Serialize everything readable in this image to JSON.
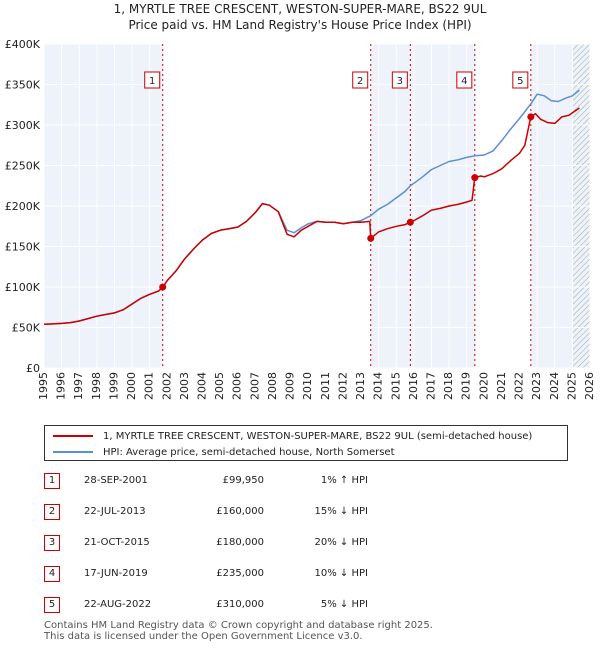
{
  "title_line1": "1, MYRTLE TREE CRESCENT, WESTON-SUPER-MARE, BS22 9UL",
  "title_line2": "Price paid vs. HM Land Registry's House Price Index (HPI)",
  "colors": {
    "property": "#cc0000",
    "hpi": "#5b8fd1",
    "marker_box": "#cc0000"
  },
  "chart_data": {
    "type": "line",
    "ylim": [
      0,
      400000
    ],
    "xlim": [
      1995,
      2026
    ],
    "yticks": [
      {
        "value": 0,
        "label": "£0"
      },
      {
        "value": 50000,
        "label": "£50K"
      },
      {
        "value": 100000,
        "label": "£100K"
      },
      {
        "value": 150000,
        "label": "£150K"
      },
      {
        "value": 200000,
        "label": "£200K"
      },
      {
        "value": 250000,
        "label": "£250K"
      },
      {
        "value": 300000,
        "label": "£300K"
      },
      {
        "value": 350000,
        "label": "£350K"
      },
      {
        "value": 400000,
        "label": "£400K"
      }
    ],
    "xticks": [
      "1995",
      "1996",
      "1997",
      "1998",
      "1999",
      "2000",
      "2001",
      "2002",
      "2003",
      "2004",
      "2005",
      "2006",
      "2007",
      "2008",
      "2009",
      "2010",
      "2011",
      "2012",
      "2013",
      "2014",
      "2015",
      "2016",
      "2017",
      "2018",
      "2019",
      "2020",
      "2021",
      "2022",
      "2023",
      "2024",
      "2025",
      "2026"
    ],
    "forecast_from": 2025.0,
    "series": [
      {
        "name": "1, MYRTLE TREE CRESCENT, WESTON-SUPER-MARE, BS22 9UL (semi-detached house)",
        "points": [
          [
            1995.0,
            54000
          ],
          [
            1995.5,
            54500
          ],
          [
            1996.0,
            55000
          ],
          [
            1996.5,
            56000
          ],
          [
            1997.0,
            58000
          ],
          [
            1997.5,
            61000
          ],
          [
            1998.0,
            64000
          ],
          [
            1998.5,
            66000
          ],
          [
            1999.0,
            68000
          ],
          [
            1999.5,
            72000
          ],
          [
            2000.0,
            79000
          ],
          [
            2000.5,
            86000
          ],
          [
            2001.0,
            91000
          ],
          [
            2001.5,
            95000
          ],
          [
            2001.74,
            99950
          ],
          [
            2002.0,
            108000
          ],
          [
            2002.5,
            120000
          ],
          [
            2003.0,
            135000
          ],
          [
            2003.5,
            147000
          ],
          [
            2004.0,
            158000
          ],
          [
            2004.5,
            166000
          ],
          [
            2005.0,
            170000
          ],
          [
            2005.5,
            172000
          ],
          [
            2006.0,
            174000
          ],
          [
            2006.5,
            181000
          ],
          [
            2007.0,
            192000
          ],
          [
            2007.4,
            203000
          ],
          [
            2007.8,
            201000
          ],
          [
            2008.3,
            193000
          ],
          [
            2008.8,
            165000
          ],
          [
            2009.2,
            162000
          ],
          [
            2009.6,
            170000
          ],
          [
            2010.0,
            175000
          ],
          [
            2010.5,
            181000
          ],
          [
            2011.0,
            180000
          ],
          [
            2011.5,
            180000
          ],
          [
            2012.0,
            178000
          ],
          [
            2012.5,
            180000
          ],
          [
            2013.0,
            180000
          ],
          [
            2013.5,
            181000
          ],
          [
            2013.55,
            160000
          ],
          [
            2014.0,
            168000
          ],
          [
            2014.5,
            172000
          ],
          [
            2015.0,
            175000
          ],
          [
            2015.5,
            177000
          ],
          [
            2015.8,
            180000
          ],
          [
            2016.0,
            182000
          ],
          [
            2016.5,
            188000
          ],
          [
            2017.0,
            195000
          ],
          [
            2017.5,
            197000
          ],
          [
            2018.0,
            200000
          ],
          [
            2018.5,
            202000
          ],
          [
            2019.0,
            205000
          ],
          [
            2019.3,
            207000
          ],
          [
            2019.46,
            235000
          ],
          [
            2019.8,
            237000
          ],
          [
            2020.0,
            236000
          ],
          [
            2020.5,
            240000
          ],
          [
            2021.0,
            246000
          ],
          [
            2021.5,
            256000
          ],
          [
            2022.0,
            265000
          ],
          [
            2022.3,
            275000
          ],
          [
            2022.64,
            310000
          ],
          [
            2022.9,
            314000
          ],
          [
            2023.2,
            307000
          ],
          [
            2023.6,
            303000
          ],
          [
            2024.0,
            302000
          ],
          [
            2024.4,
            310000
          ],
          [
            2024.8,
            312000
          ],
          [
            2025.2,
            318000
          ],
          [
            2025.4,
            321000
          ]
        ]
      },
      {
        "name": "HPI: Average price, semi-detached house, North Somerset",
        "points": [
          [
            1995.0,
            54000
          ],
          [
            1995.5,
            54500
          ],
          [
            1996.0,
            55000
          ],
          [
            1996.5,
            56000
          ],
          [
            1997.0,
            58000
          ],
          [
            1997.5,
            61000
          ],
          [
            1998.0,
            64000
          ],
          [
            1998.5,
            66000
          ],
          [
            1999.0,
            68000
          ],
          [
            1999.5,
            72000
          ],
          [
            2000.0,
            79000
          ],
          [
            2000.5,
            86000
          ],
          [
            2001.0,
            91000
          ],
          [
            2001.5,
            95000
          ],
          [
            2001.74,
            99000
          ],
          [
            2002.0,
            108000
          ],
          [
            2002.5,
            120000
          ],
          [
            2003.0,
            135000
          ],
          [
            2003.5,
            147000
          ],
          [
            2004.0,
            158000
          ],
          [
            2004.5,
            166000
          ],
          [
            2005.0,
            170000
          ],
          [
            2005.5,
            172000
          ],
          [
            2006.0,
            174000
          ],
          [
            2006.5,
            181000
          ],
          [
            2007.0,
            192000
          ],
          [
            2007.4,
            203000
          ],
          [
            2007.8,
            201000
          ],
          [
            2008.3,
            193000
          ],
          [
            2008.8,
            170000
          ],
          [
            2009.2,
            167000
          ],
          [
            2009.6,
            173000
          ],
          [
            2010.0,
            178000
          ],
          [
            2010.5,
            181000
          ],
          [
            2011.0,
            180000
          ],
          [
            2011.5,
            180000
          ],
          [
            2012.0,
            178000
          ],
          [
            2012.5,
            180000
          ],
          [
            2013.0,
            182000
          ],
          [
            2013.55,
            188000
          ],
          [
            2014.0,
            196000
          ],
          [
            2014.5,
            202000
          ],
          [
            2015.0,
            210000
          ],
          [
            2015.5,
            218000
          ],
          [
            2015.8,
            225000
          ],
          [
            2016.0,
            228000
          ],
          [
            2016.5,
            236000
          ],
          [
            2017.0,
            245000
          ],
          [
            2017.5,
            250000
          ],
          [
            2018.0,
            255000
          ],
          [
            2018.5,
            257000
          ],
          [
            2019.0,
            260000
          ],
          [
            2019.46,
            262000
          ],
          [
            2020.0,
            263000
          ],
          [
            2020.5,
            268000
          ],
          [
            2021.0,
            281000
          ],
          [
            2021.5,
            295000
          ],
          [
            2022.0,
            308000
          ],
          [
            2022.64,
            326000
          ],
          [
            2023.0,
            338000
          ],
          [
            2023.4,
            336000
          ],
          [
            2023.8,
            330000
          ],
          [
            2024.2,
            329000
          ],
          [
            2024.6,
            333000
          ],
          [
            2025.0,
            336000
          ],
          [
            2025.4,
            343000
          ]
        ]
      }
    ],
    "sales": [
      {
        "id": "1",
        "x": 2001.74,
        "value": 99950
      },
      {
        "id": "2",
        "x": 2013.55,
        "value": 160000
      },
      {
        "id": "3",
        "x": 2015.8,
        "value": 180000
      },
      {
        "id": "4",
        "x": 2019.46,
        "value": 235000
      },
      {
        "id": "5",
        "x": 2022.64,
        "value": 310000
      }
    ]
  },
  "legend": {
    "property_label": "1, MYRTLE TREE CRESCENT, WESTON-SUPER-MARE, BS22 9UL (semi-detached house)",
    "hpi_label": "HPI: Average price, semi-detached house, North Somerset"
  },
  "sales_table": [
    {
      "num": "1",
      "date": "28-SEP-2001",
      "price": "£99,950",
      "hpi": "1% ↑ HPI"
    },
    {
      "num": "2",
      "date": "22-JUL-2013",
      "price": "£160,000",
      "hpi": "15% ↓ HPI"
    },
    {
      "num": "3",
      "date": "21-OCT-2015",
      "price": "£180,000",
      "hpi": "20% ↓ HPI"
    },
    {
      "num": "4",
      "date": "17-JUN-2019",
      "price": "£235,000",
      "hpi": "10% ↓ HPI"
    },
    {
      "num": "5",
      "date": "22-AUG-2022",
      "price": "£310,000",
      "hpi": "5% ↓ HPI"
    }
  ],
  "footer_line1": "Contains HM Land Registry data © Crown copyright and database right 2025.",
  "footer_line2": "This data is licensed under the Open Government Licence v3.0."
}
